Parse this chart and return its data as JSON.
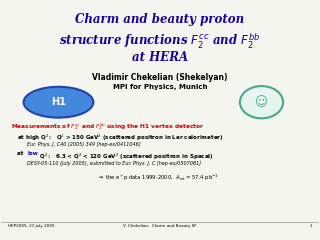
{
  "title_line1": "Charm and beauty proton",
  "title_line2": "structure functions $F_2^{cc}$ and $F_2^{bb}$",
  "title_line3": "at HERA",
  "title_color": "#1a0099",
  "author": "Vladimir Chekelian (Shekelyan)",
  "institute": "MPI for Physics, Munich",
  "meas_red_color": "#cc0000",
  "low_color": "#0000cc",
  "line1_ref": "Eur. Phys. J. C40 (2005) 349 [hep-ex/0411046]",
  "line2_ref": "DESY-05-110 (July 2005), submitted to Eur. Phys. J. C [hep-ex/0507081]",
  "bottom_left": "HEP2005, 21 July 2005",
  "bottom_center": "V. Chekelian,  Charm and Beauty SF",
  "bottom_right": "1",
  "bg_color": "#f5f5f0"
}
